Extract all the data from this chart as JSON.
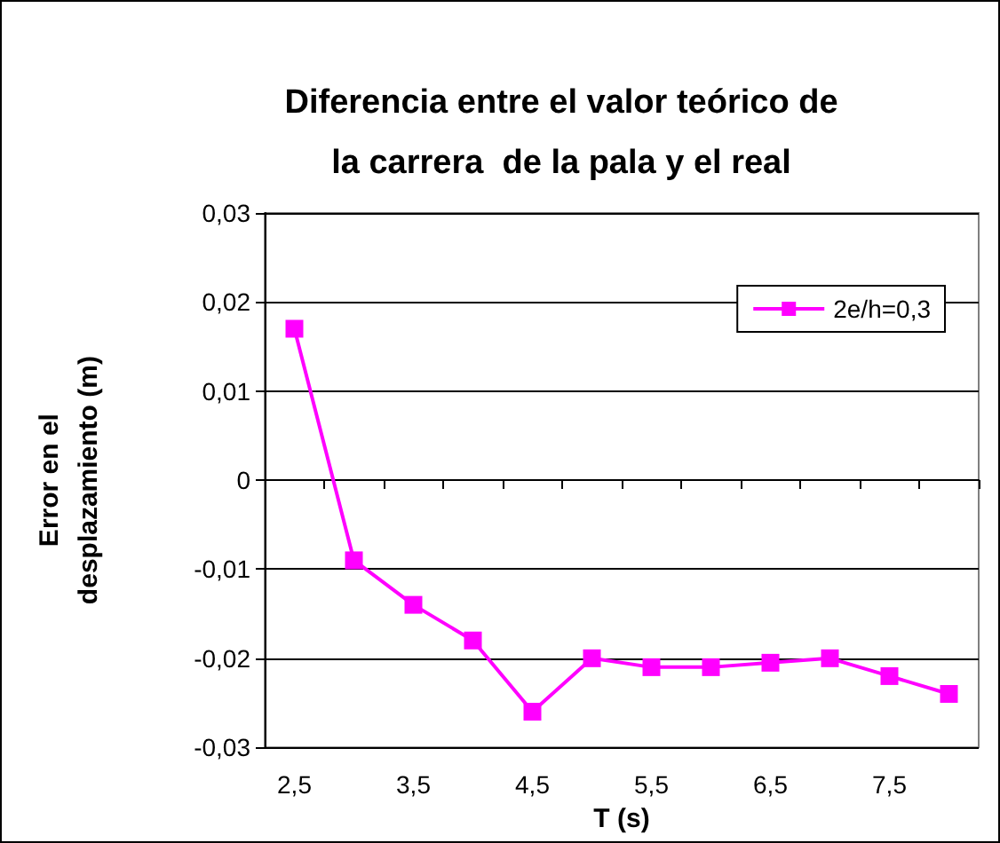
{
  "chart_data": {
    "type": "line",
    "title": "Diferencia entre el valor teórico de\nla carrera  de la pala y el real",
    "xlabel": "T (s)",
    "ylabel": "Error en el\ndesplazamiento (m)",
    "categories": [
      "2,5",
      null,
      "3,5",
      null,
      "4,5",
      null,
      "5,5",
      null,
      "6,5",
      null,
      "7,5",
      null
    ],
    "series": [
      {
        "name": "2e/h=0,3",
        "color": "#ff00ff",
        "values": [
          0.017,
          -0.009,
          -0.014,
          -0.018,
          -0.026,
          -0.02,
          -0.021,
          -0.021,
          -0.0205,
          -0.02,
          -0.022,
          -0.024
        ]
      }
    ],
    "ylim": [
      -0.03,
      0.03
    ],
    "yticks": [
      {
        "value": -0.03,
        "label": "-0,03"
      },
      {
        "value": -0.02,
        "label": "-0,02"
      },
      {
        "value": -0.01,
        "label": "-0,01"
      },
      {
        "value": 0,
        "label": "0"
      },
      {
        "value": 0.01,
        "label": "0,01"
      },
      {
        "value": 0.02,
        "label": "0,02"
      },
      {
        "value": 0.03,
        "label": "0,03"
      }
    ],
    "grid": "y",
    "legend": "top right",
    "marker": "square",
    "line_style": "solid"
  }
}
